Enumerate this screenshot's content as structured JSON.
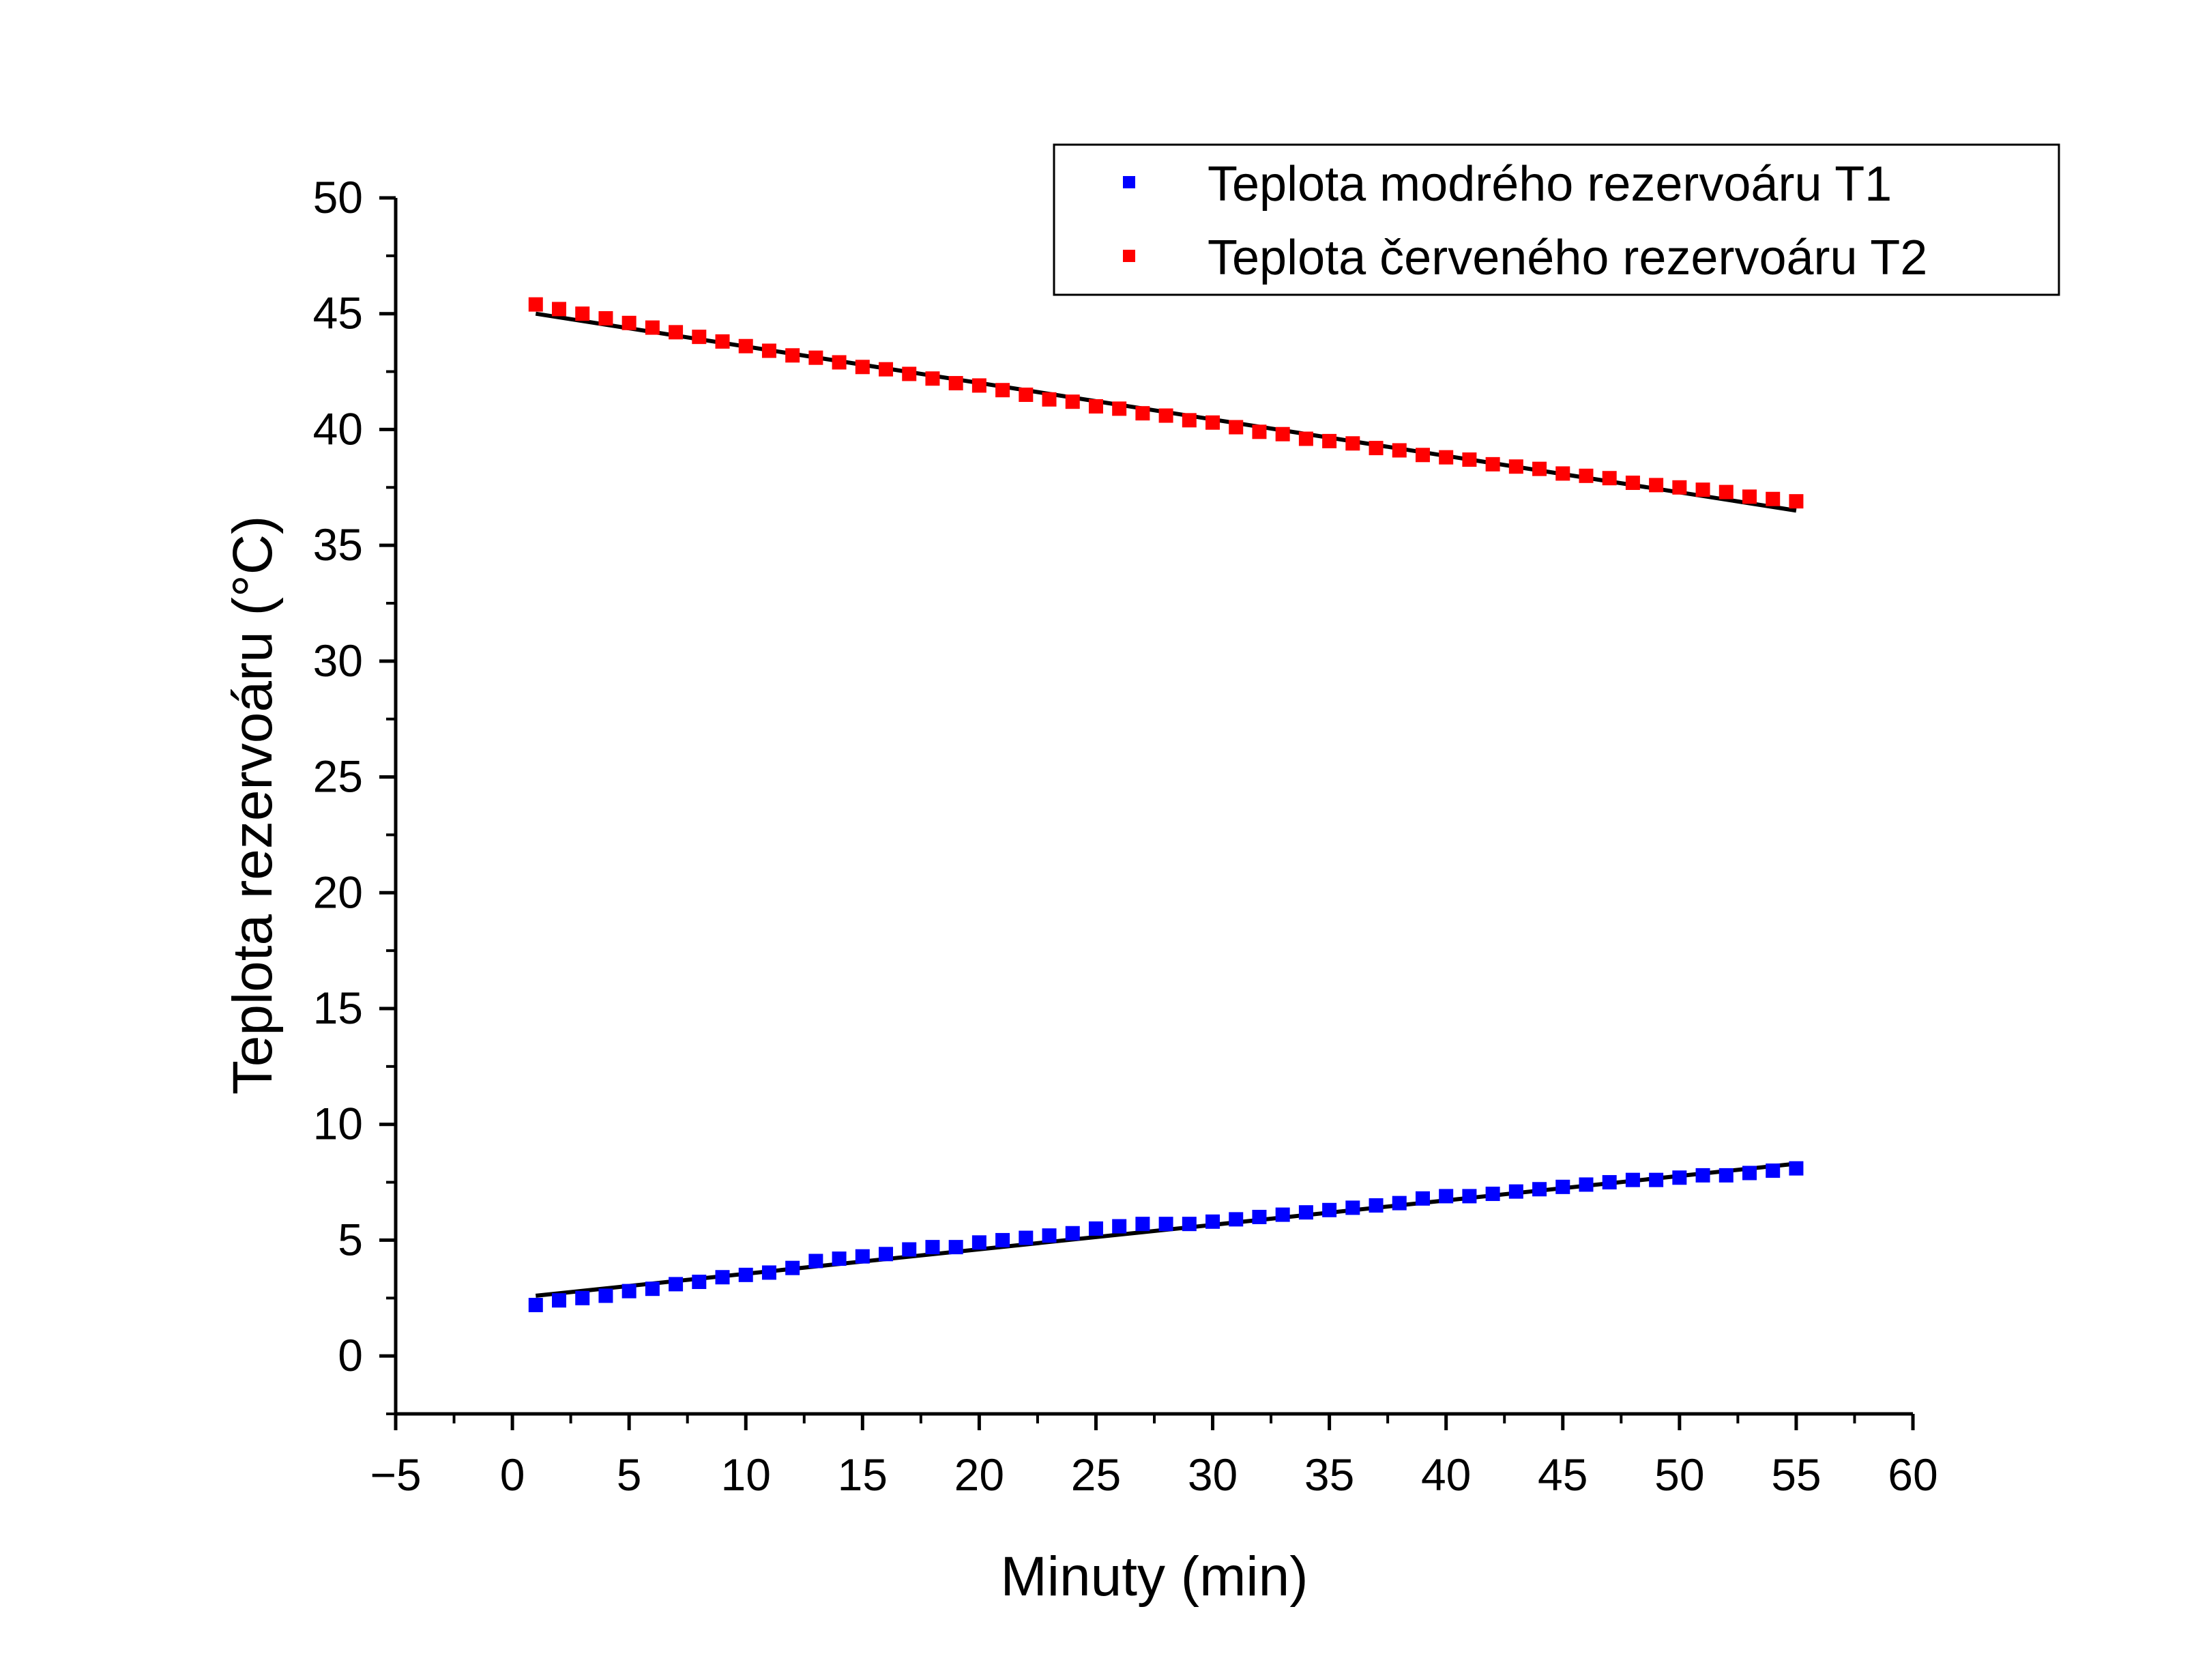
{
  "chart_data": {
    "type": "scatter",
    "xlabel": "Minuty (min)",
    "ylabel": "Teplota rezervoáru (°C)",
    "xlim": [
      -5,
      60
    ],
    "ylim": [
      -2.5,
      50
    ],
    "x_ticks": [
      -5,
      0,
      5,
      10,
      15,
      20,
      25,
      30,
      35,
      40,
      45,
      50,
      55,
      60
    ],
    "x_tick_labels": [
      "−5",
      "0",
      "5",
      "10",
      "15",
      "20",
      "25",
      "30",
      "35",
      "40",
      "45",
      "50",
      "55",
      "60"
    ],
    "y_ticks": [
      0,
      5,
      10,
      15,
      20,
      25,
      30,
      35,
      40,
      45,
      50
    ],
    "y_tick_labels": [
      "0",
      "5",
      "10",
      "15",
      "20",
      "25",
      "30",
      "35",
      "40",
      "45",
      "50"
    ],
    "legend_position": "top-right",
    "grid": false,
    "x": [
      1,
      2,
      3,
      4,
      5,
      6,
      7,
      8,
      9,
      10,
      11,
      12,
      13,
      14,
      15,
      16,
      17,
      18,
      19,
      20,
      21,
      22,
      23,
      24,
      25,
      26,
      27,
      28,
      29,
      30,
      31,
      32,
      33,
      34,
      35,
      36,
      37,
      38,
      39,
      40,
      41,
      42,
      43,
      44,
      45,
      46,
      47,
      48,
      49,
      50,
      51,
      52,
      53,
      54,
      55
    ],
    "series": [
      {
        "name": "Teplota modrého rezervoáru T1",
        "color": "#0000ff",
        "values": [
          2.2,
          2.4,
          2.5,
          2.6,
          2.8,
          2.9,
          3.1,
          3.2,
          3.4,
          3.5,
          3.6,
          3.8,
          4.1,
          4.2,
          4.3,
          4.4,
          4.6,
          4.7,
          4.7,
          4.9,
          5.0,
          5.1,
          5.2,
          5.3,
          5.5,
          5.6,
          5.7,
          5.7,
          5.7,
          5.8,
          5.9,
          6.0,
          6.1,
          6.2,
          6.3,
          6.4,
          6.5,
          6.6,
          6.8,
          6.9,
          6.9,
          7.0,
          7.1,
          7.2,
          7.3,
          7.4,
          7.5,
          7.6,
          7.6,
          7.7,
          7.8,
          7.8,
          7.9,
          8.0,
          8.1
        ]
      },
      {
        "name": "Teplota červeného rezervoáru T2",
        "color": "#ff0000",
        "values": [
          45.4,
          45.2,
          45.0,
          44.8,
          44.6,
          44.4,
          44.2,
          44.0,
          43.8,
          43.6,
          43.4,
          43.2,
          43.1,
          42.9,
          42.7,
          42.6,
          42.4,
          42.2,
          42.0,
          41.9,
          41.7,
          41.5,
          41.3,
          41.2,
          41.0,
          40.9,
          40.7,
          40.6,
          40.4,
          40.3,
          40.1,
          39.9,
          39.8,
          39.6,
          39.5,
          39.4,
          39.2,
          39.1,
          38.9,
          38.8,
          38.7,
          38.5,
          38.4,
          38.3,
          38.1,
          38.0,
          37.9,
          37.7,
          37.6,
          37.5,
          37.4,
          37.3,
          37.1,
          37.0,
          36.9
        ]
      }
    ],
    "fit_lines": [
      {
        "color": "#000000",
        "x": [
          1,
          55
        ],
        "y": [
          2.6,
          8.3
        ]
      },
      {
        "color": "#000000",
        "x": [
          1,
          55
        ],
        "y": [
          45.0,
          36.5
        ]
      }
    ]
  }
}
